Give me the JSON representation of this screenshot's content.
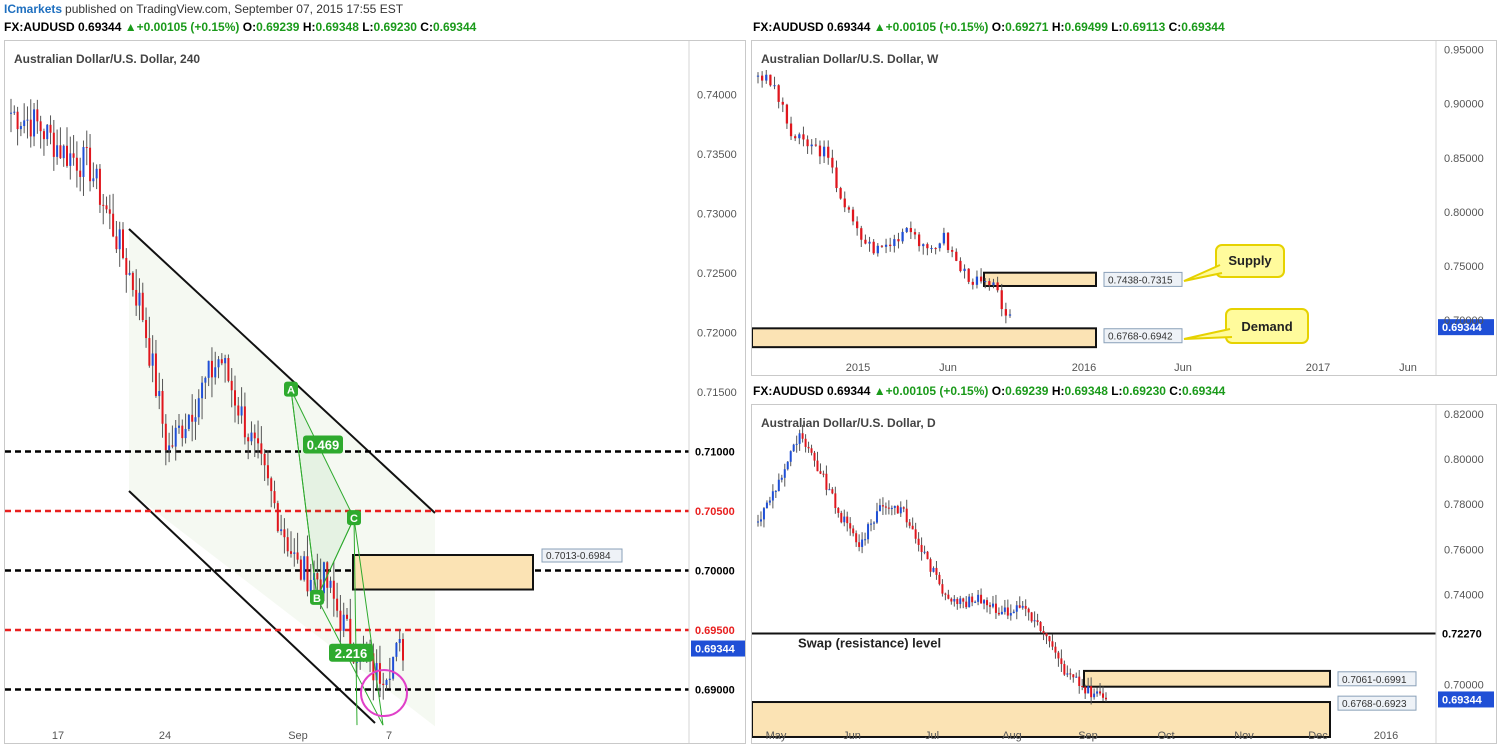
{
  "topbar": {
    "brand": "ICmarkets",
    "published": "published on TradingView.com, September 07, 2015 17:55 EST"
  },
  "colors": {
    "bull": "#1f4fd6",
    "bear": "#e0161d",
    "zone_fill": "#fbe3b4",
    "callout": "#fffb9c",
    "harmonic": "#2eaa2e",
    "red_level": "#e82020",
    "ring": "#e040c8"
  },
  "headers": {
    "h4": {
      "sym": "FX:AUDUSD",
      "price": "0.69344",
      "change": "+0.00105 (+0.15%)",
      "o": "0.69239",
      "h": "0.69348",
      "l": "0.69230",
      "c": "0.69344"
    },
    "weekly": {
      "sym": "FX:AUDUSD",
      "price": "0.69344",
      "change": "+0.00105 (+0.15%)",
      "o": "0.69271",
      "h": "0.69499",
      "l": "0.69113",
      "c": "0.69344"
    },
    "daily": {
      "sym": "FX:AUDUSD",
      "price": "0.69344",
      "change": "+0.00105 (+0.15%)",
      "o": "0.69239",
      "h": "0.69348",
      "l": "0.69230",
      "c": "0.69344"
    }
  },
  "ohlc_labels": {
    "o": "O:",
    "h": "H:",
    "l": "L:",
    "c": "C:"
  },
  "chart_data": [
    {
      "type": "candlestick",
      "title": "Australian Dollar/U.S. Dollar, 240",
      "ylim": [
        0.6855,
        0.7445
      ],
      "y_ticks": [
        "0.74000",
        "0.73500",
        "0.73000",
        "0.72500",
        "0.72000",
        "0.71500"
      ],
      "x_ticks": [
        "17",
        "24",
        "Sep",
        "7"
      ],
      "levels": [
        {
          "value": 0.71,
          "label": "0.71000",
          "color": "#000000",
          "style": "dashed"
        },
        {
          "value": 0.705,
          "label": "0.70500",
          "color": "#e82020",
          "style": "dashed"
        },
        {
          "value": 0.7,
          "label": "0.70000",
          "color": "#000000",
          "style": "dashed"
        },
        {
          "value": 0.695,
          "label": "0.69500",
          "color": "#e82020",
          "style": "dashed"
        },
        {
          "value": 0.69,
          "label": "0.69000",
          "color": "#000000",
          "style": "dashed"
        }
      ],
      "current": {
        "value": 0.69344,
        "label": "0.69344"
      },
      "zone": {
        "label": "0.7013-0.6984",
        "top": 0.7013,
        "bottom": 0.6984
      },
      "harmonic": {
        "points": [
          "A",
          "B",
          "C"
        ],
        "ratios": [
          "0.469",
          "2.216"
        ]
      }
    },
    {
      "type": "candlestick",
      "title": "Australian Dollar/U.S. Dollar, W",
      "ylim": [
        0.664,
        0.958
      ],
      "y_ticks": [
        "0.95000",
        "0.90000",
        "0.85000",
        "0.80000",
        "0.75000",
        "0.70000"
      ],
      "x_ticks": [
        "2015",
        "Jun",
        "2016",
        "Jun",
        "2017",
        "Jun"
      ],
      "current": {
        "value": 0.69344,
        "label": "0.69344"
      },
      "zones": [
        {
          "label": "0.7438-0.7315",
          "top": 0.7438,
          "bottom": 0.7315
        },
        {
          "label": "0.6768-0.6942",
          "top": 0.6942,
          "bottom": 0.6768
        }
      ],
      "annotations": [
        "Supply",
        "Demand"
      ]
    },
    {
      "type": "candlestick",
      "title": "Australian Dollar/U.S. Dollar, D",
      "ylim": [
        0.683,
        0.824
      ],
      "y_ticks": [
        "0.82000",
        "0.80000",
        "0.78000",
        "0.76000",
        "0.74000",
        "0.70000"
      ],
      "x_ticks": [
        "May",
        "Jun",
        "Jul",
        "Aug",
        "Sep",
        "Oct",
        "Nov",
        "Dec",
        "2016"
      ],
      "levels": [
        {
          "value": 0.7227,
          "label": "0.72270",
          "color": "#000000",
          "style": "solid",
          "note": "Swap (resistance) level"
        }
      ],
      "current": {
        "value": 0.69344,
        "label": "0.69344"
      },
      "zones": [
        {
          "label": "0.7061-0.6991",
          "top": 0.7061,
          "bottom": 0.6991
        },
        {
          "label": "0.6768-0.6923",
          "top": 0.6923,
          "bottom": 0.6768
        }
      ]
    }
  ]
}
